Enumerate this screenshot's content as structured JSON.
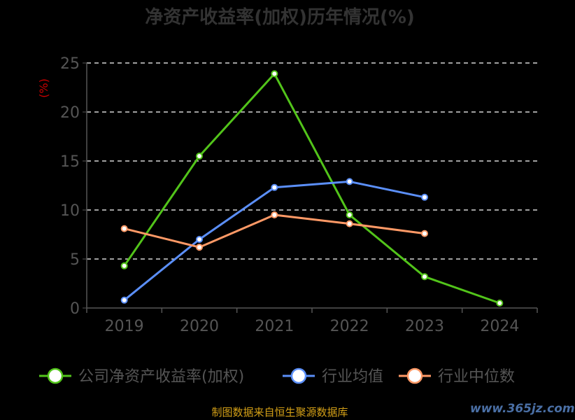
{
  "colors": {
    "background": "#000000",
    "axis": "#555555",
    "grid": "#ffffff",
    "tick_text": "#555555",
    "unit_text": "#cc0000",
    "title_text": "#333333",
    "source_text": "#d4a017"
  },
  "source": "制图数据来自恒生聚源数据库",
  "watermark": "www.365jz.com",
  "chart_data": {
    "type": "line",
    "title": "净资产收益率(加权)历年情况(%)",
    "ylabel": "(%)",
    "xlabel": "",
    "categories": [
      "2019",
      "2020",
      "2021",
      "2022",
      "2023",
      "2024"
    ],
    "ylim": [
      0,
      25
    ],
    "yticks": [
      0,
      5,
      10,
      15,
      20,
      25
    ],
    "grid": true,
    "legend_position": "bottom",
    "series": [
      {
        "name": "公司净资产收益率(加权)",
        "color": "#52c41a",
        "values": [
          4.3,
          15.5,
          23.9,
          9.5,
          3.2,
          0.5
        ]
      },
      {
        "name": "行业均值",
        "color": "#5b8ff9",
        "values": [
          0.8,
          7.0,
          12.3,
          12.9,
          11.3,
          null
        ]
      },
      {
        "name": "行业中位数",
        "color": "#ff9966",
        "values": [
          8.1,
          6.2,
          9.5,
          8.6,
          7.6,
          null
        ]
      }
    ]
  }
}
